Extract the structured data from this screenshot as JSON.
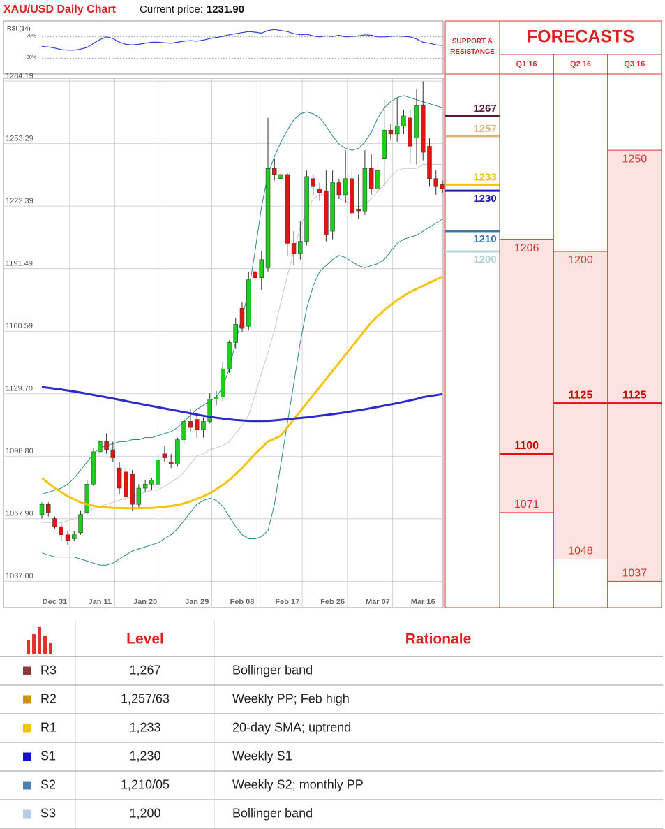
{
  "header": {
    "title": "XAU/USD Daily Chart",
    "price_label": "Current price:",
    "price": "1231.90"
  },
  "chart_data": [
    {
      "type": "line",
      "title": "RSI (14)",
      "color": "#2b3fd6",
      "values": [
        52,
        51,
        49,
        46,
        45,
        45,
        47,
        50,
        58,
        65,
        70,
        67,
        60,
        56,
        55,
        56,
        58,
        60,
        60,
        59,
        58,
        60,
        62,
        63,
        62,
        64,
        67,
        69,
        71,
        74,
        76,
        78,
        80,
        79,
        77,
        82,
        84,
        82,
        80,
        76,
        74,
        75,
        72,
        70,
        72,
        71,
        73,
        70,
        71,
        72,
        74,
        73,
        70,
        70,
        71,
        72,
        71,
        70,
        66,
        60,
        58,
        55,
        54
      ],
      "ylim": [
        0,
        100
      ],
      "yticks": [
        {
          "value": 70,
          "label": "70%"
        },
        {
          "value": 30,
          "label": "30%"
        }
      ]
    },
    {
      "type": "candlestick",
      "up_color": "#1fcc1f",
      "down_color": "#e01515",
      "categories": [
        null,
        null,
        "Dec 31",
        null,
        null,
        null,
        null,
        null,
        null,
        "Jan 11",
        null,
        null,
        null,
        null,
        null,
        null,
        "Jan 20",
        null,
        null,
        null,
        null,
        null,
        null,
        null,
        "Jan 29",
        null,
        null,
        null,
        null,
        null,
        null,
        "Feb 08",
        null,
        null,
        null,
        null,
        null,
        null,
        "Feb 17",
        null,
        null,
        null,
        null,
        null,
        null,
        "Feb 26",
        null,
        null,
        null,
        null,
        null,
        null,
        "Mar 07",
        null,
        null,
        null,
        null,
        null,
        null,
        "Mar 16",
        null,
        null,
        null
      ],
      "ohlc": {
        "open": [
          1070,
          1075,
          1068,
          1064,
          1060,
          1058,
          1061,
          1071,
          1085,
          1101,
          1106,
          1102,
          1093,
          1091,
          1090,
          1075,
          1083,
          1085,
          1085,
          1100,
          1096,
          1095,
          1107,
          1116,
          1117,
          1112,
          1116,
          1127,
          1128,
          1142,
          1155,
          1172,
          1163,
          1190,
          1187,
          1192,
          1241,
          1236,
          1238,
          1204,
          1199,
          1205,
          1236,
          1231,
          1230,
          1210,
          1234,
          1228,
          1236,
          1221,
          1220,
          1241,
          1231,
          1246,
          1260,
          1258,
          1262,
          1266,
          1256,
          1272,
          1252,
          1236,
          1233
        ],
        "high": [
          1076,
          1076,
          1069,
          1066,
          1062,
          1062,
          1072,
          1087,
          1103,
          1107,
          1110,
          1106,
          1096,
          1093,
          1092,
          1085,
          1087,
          1088,
          1100,
          1104,
          1100,
          1108,
          1118,
          1122,
          1119,
          1118,
          1130,
          1131,
          1145,
          1156,
          1167,
          1175,
          1190,
          1194,
          1200,
          1266,
          1246,
          1240,
          1239,
          1210,
          1215,
          1240,
          1238,
          1234,
          1240,
          1240,
          1236,
          1250,
          1240,
          1238,
          1250,
          1248,
          1245,
          1275,
          1263,
          1276,
          1270,
          1270,
          1280,
          1284,
          1256,
          1240,
          1235
        ],
        "low": [
          1068,
          1069,
          1063,
          1057,
          1055,
          1057,
          1060,
          1070,
          1084,
          1099,
          1100,
          1096,
          1080,
          1077,
          1072,
          1073,
          1081,
          1082,
          1083,
          1096,
          1093,
          1094,
          1105,
          1111,
          1108,
          1108,
          1115,
          1124,
          1126,
          1140,
          1152,
          1160,
          1161,
          1184,
          1181,
          1190,
          1235,
          1233,
          1198,
          1193,
          1196,
          1203,
          1228,
          1225,
          1205,
          1206,
          1226,
          1224,
          1216,
          1216,
          1218,
          1228,
          1229,
          1232,
          1255,
          1254,
          1258,
          1244,
          1243,
          1245,
          1232,
          1228,
          1229
        ],
        "close": [
          1075,
          1071,
          1064,
          1060,
          1057,
          1060,
          1070,
          1085,
          1101,
          1106,
          1102,
          1098,
          1083,
          1079,
          1075,
          1083,
          1085,
          1087,
          1097,
          1098,
          1095,
          1107,
          1116,
          1113,
          1112,
          1116,
          1127,
          1128,
          1142,
          1155,
          1164,
          1162,
          1186,
          1187,
          1196,
          1241,
          1238,
          1238,
          1204,
          1199,
          1205,
          1237,
          1232,
          1229,
          1208,
          1234,
          1228,
          1236,
          1219,
          1220,
          1241,
          1231,
          1240,
          1260,
          1258,
          1262,
          1267,
          1252,
          1272,
          1249,
          1236,
          1232,
          1231
        ]
      },
      "overlays": [
        {
          "color": "#2a8a8a",
          "values": [
            1080,
            1081,
            1082,
            1083,
            1085,
            1088,
            1092,
            1096,
            1100,
            1103,
            1104,
            1105,
            1106,
            1106,
            1107,
            1107,
            1108,
            1108,
            1109,
            1110,
            1111,
            1113,
            1116,
            1119,
            1122,
            1124,
            1126,
            1128,
            1133,
            1142,
            1155,
            1168,
            1180,
            1200,
            1222,
            1238,
            1247,
            1254,
            1260,
            1265,
            1268,
            1269,
            1268,
            1266,
            1262,
            1257,
            1253,
            1251,
            1250,
            1251,
            1254,
            1259,
            1266,
            1271,
            1274,
            1276,
            1277,
            1276,
            1275,
            1274,
            1273,
            1272,
            1271
          ]
        },
        {
          "color": "#2a8a8a",
          "values": [
            1051,
            1050,
            1049,
            1049,
            1049,
            1049,
            1048,
            1047,
            1046,
            1045,
            1045,
            1046,
            1048,
            1050,
            1052,
            1053,
            1054,
            1055,
            1056,
            1058,
            1060,
            1063,
            1067,
            1071,
            1075,
            1077,
            1078,
            1077,
            1074,
            1069,
            1064,
            1060,
            1058,
            1058,
            1059,
            1062,
            1075,
            1095,
            1115,
            1135,
            1155,
            1172,
            1183,
            1190,
            1193,
            1196,
            1198,
            1197,
            1195,
            1193,
            1192,
            1193,
            1194,
            1196,
            1200,
            1204,
            1206,
            1207,
            1208,
            1210,
            1212,
            1214,
            1216
          ]
        },
        {
          "color": "#c8c8c8",
          "values": [
            1066,
            1066,
            1066,
            1066,
            1067,
            1068,
            1070,
            1071,
            1073,
            1074,
            1075,
            1076,
            1077,
            1078,
            1079,
            1080,
            1081,
            1082,
            1082,
            1084,
            1086,
            1088,
            1091,
            1095,
            1099,
            1100,
            1102,
            1103,
            1104,
            1106,
            1110,
            1114,
            1119,
            1129,
            1140,
            1150,
            1161,
            1175,
            1188,
            1200,
            1212,
            1220,
            1226,
            1228,
            1228,
            1227,
            1226,
            1225,
            1223,
            1222,
            1223,
            1226,
            1230,
            1233,
            1237,
            1240,
            1241,
            1241,
            1241,
            1243,
            1243,
            1243,
            1243
          ]
        },
        {
          "color": "#f5c20c",
          "values": [
            1088,
            1085.5,
            1083,
            1081,
            1079,
            1077.5,
            1076,
            1075,
            1074.3,
            1073.8,
            1073.5,
            1073.3,
            1073.2,
            1073.1,
            1073.1,
            1073.1,
            1073.2,
            1073.3,
            1073.5,
            1073.8,
            1074.2,
            1074.7,
            1075.5,
            1076.5,
            1077.7,
            1079,
            1080.5,
            1082.5,
            1084.6,
            1087,
            1090,
            1093,
            1096.5,
            1100,
            1103,
            1106,
            1107.5,
            1109,
            1113,
            1117,
            1121,
            1125,
            1129,
            1133,
            1137,
            1141,
            1145,
            1149,
            1153,
            1157,
            1161,
            1165,
            1168,
            1171,
            1173.5,
            1176,
            1178,
            1180,
            1181.5,
            1183,
            1184.5,
            1186,
            1187.5
          ]
        },
        {
          "color": "#2a2ad0",
          "values": [
            1133,
            1132.6,
            1132.2,
            1131.8,
            1131.3,
            1130.8,
            1130.3,
            1129.7,
            1129.1,
            1128.5,
            1127.9,
            1127.3,
            1126.7,
            1126.1,
            1125.4,
            1124.8,
            1124.2,
            1123.6,
            1123,
            1122.4,
            1121.8,
            1121.2,
            1120.6,
            1120,
            1119.4,
            1118.8,
            1118.3,
            1117.8,
            1117.4,
            1117,
            1116.7,
            1116.5,
            1116.3,
            1116.2,
            1116.2,
            1116.3,
            1116.5,
            1116.8,
            1117.1,
            1117.4,
            1117.7,
            1118,
            1118.4,
            1118.8,
            1119.2,
            1119.6,
            1120,
            1120.5,
            1121,
            1121.5,
            1122,
            1122.6,
            1123.2,
            1123.8,
            1124.4,
            1125,
            1125.7,
            1126.4,
            1127.1,
            1128,
            1128.5,
            1129,
            1129.5
          ]
        }
      ],
      "ylim": [
        1024,
        1285.6
      ],
      "yticks": [
        {
          "value": 1037,
          "label": "1037.00"
        },
        {
          "value": 1067.9,
          "label": "1067.90"
        },
        {
          "value": 1098.8,
          "label": "1098.80"
        },
        {
          "value": 1129.7,
          "label": "1129.70"
        },
        {
          "value": 1160.59,
          "label": "1160.59"
        },
        {
          "value": 1191.49,
          "label": "1191.49"
        },
        {
          "value": 1222.39,
          "label": "1222.39"
        },
        {
          "value": 1253.29,
          "label": "1253.29"
        },
        {
          "value": 1284.19,
          "label": "1284.19"
        }
      ],
      "grid": true
    }
  ],
  "support_resistance": {
    "title": "SUPPORT & RESISTANCE",
    "levels": [
      {
        "value": 1267,
        "color": "#5c1838"
      },
      {
        "value": 1257,
        "color": "#d8b47c"
      },
      {
        "value": 1233,
        "color": "#f2c200"
      },
      {
        "value": 1230,
        "color": "#1a1aa8"
      },
      {
        "value": 1210,
        "color": "#3a78a8"
      },
      {
        "value": 1200,
        "color": "#b4d2da"
      }
    ]
  },
  "forecasts": {
    "title": "FORECASTS",
    "columns": [
      {
        "label": "Q1 16",
        "high": 1206,
        "median": 1100,
        "low": 1071
      },
      {
        "label": "Q2 16",
        "high": 1200,
        "median": 1125,
        "low": 1048
      },
      {
        "label": "Q3 16",
        "high": 1250,
        "median": 1125,
        "low": 1037
      }
    ]
  },
  "table": {
    "headers": [
      "Level",
      "Rationale"
    ],
    "rows": [
      {
        "code": "R3",
        "color": "#8b3a3a",
        "level": "1,267",
        "rationale": "Bollinger band"
      },
      {
        "code": "R2",
        "color": "#c8960a",
        "level": "1,257/63",
        "rationale": "Weekly PP; Feb high"
      },
      {
        "code": "R1",
        "color": "#f5c400",
        "level": "1,233",
        "rationale": "20-day SMA; uptrend"
      },
      {
        "code": "S1",
        "color": "#1010d0",
        "level": "1,230",
        "rationale": "Weekly S1"
      },
      {
        "code": "S2",
        "color": "#4a80b8",
        "level": "1,210/05",
        "rationale": "Weekly S2; monthly PP"
      },
      {
        "code": "S3",
        "color": "#b8cce4",
        "level": "1,200",
        "rationale": "Bollinger band"
      }
    ]
  }
}
